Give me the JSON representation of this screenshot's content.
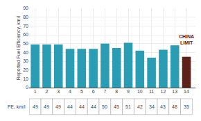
{
  "chart_data": {
    "type": "bar",
    "categories": [
      "1",
      "2",
      "3",
      "4",
      "5",
      "6",
      "7",
      "8",
      "9",
      "10",
      "11",
      "12",
      "13",
      "14"
    ],
    "values": [
      49,
      49,
      49,
      44,
      44,
      44,
      50,
      45,
      51,
      42,
      34,
      43,
      48,
      35
    ],
    "colors": [
      "#2a9db5",
      "#2a9db5",
      "#2a9db5",
      "#2a9db5",
      "#2a9db5",
      "#2a9db5",
      "#2a9db5",
      "#2a9db5",
      "#2a9db5",
      "#2a9db5",
      "#2a9db5",
      "#2a9db5",
      "#2a9db5",
      "#5c2217"
    ],
    "ylabel": "Reported Fuel Efficiency, km/l",
    "annotations": [
      "CHINA\nLIMIT",
      "FE, km/l"
    ],
    "ylim": [
      0,
      90
    ],
    "yticks": [
      0,
      10,
      20,
      30,
      40,
      50,
      60,
      70,
      80,
      90
    ],
    "grid": true,
    "data_labels": true
  }
}
